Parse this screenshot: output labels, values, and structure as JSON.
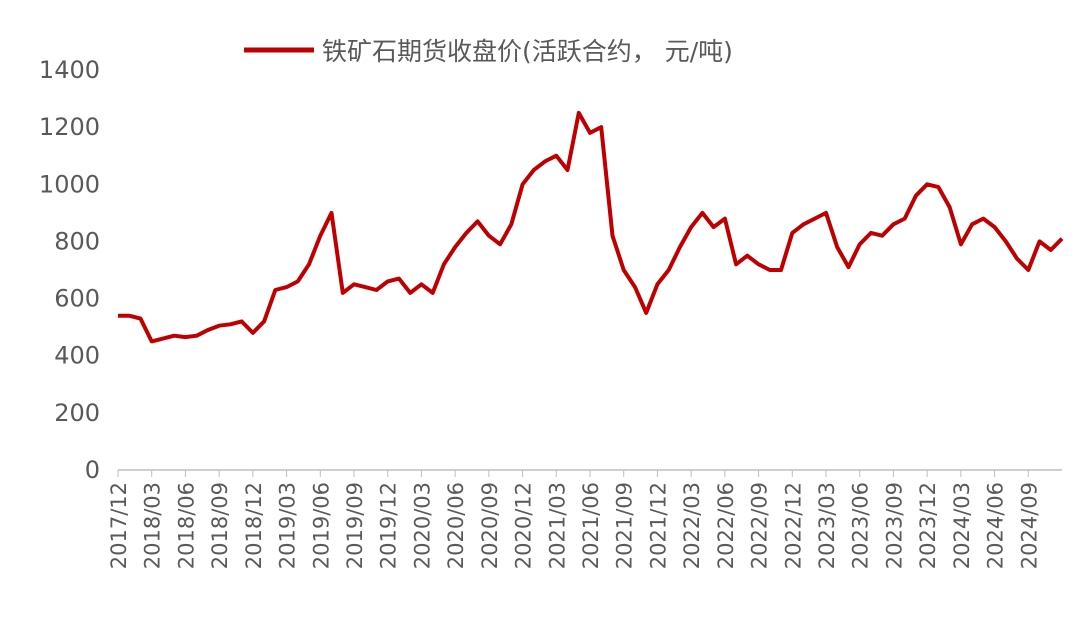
{
  "chart_data": {
    "type": "line",
    "x": [
      "2017/12",
      "2018/01",
      "2018/02",
      "2018/03",
      "2018/04",
      "2018/05",
      "2018/06",
      "2018/07",
      "2018/08",
      "2018/09",
      "2018/10",
      "2018/11",
      "2018/12",
      "2019/01",
      "2019/02",
      "2019/03",
      "2019/04",
      "2019/05",
      "2019/06",
      "2019/07",
      "2019/08",
      "2019/09",
      "2019/10",
      "2019/11",
      "2019/12",
      "2020/01",
      "2020/02",
      "2020/03",
      "2020/04",
      "2020/05",
      "2020/06",
      "2020/07",
      "2020/08",
      "2020/09",
      "2020/10",
      "2020/11",
      "2020/12",
      "2021/01",
      "2021/02",
      "2021/03",
      "2021/04",
      "2021/05",
      "2021/06",
      "2021/07",
      "2021/08",
      "2021/09",
      "2021/10",
      "2021/11",
      "2021/12",
      "2022/01",
      "2022/02",
      "2022/03",
      "2022/04",
      "2022/05",
      "2022/06",
      "2022/07",
      "2022/08",
      "2022/09",
      "2022/10",
      "2022/11",
      "2022/12",
      "2023/01",
      "2023/02",
      "2023/03",
      "2023/04",
      "2023/05",
      "2023/06",
      "2023/07",
      "2023/08",
      "2023/09",
      "2023/10",
      "2023/11",
      "2023/12",
      "2024/01",
      "2024/02",
      "2024/03",
      "2024/04",
      "2024/05",
      "2024/06",
      "2024/07",
      "2024/08",
      "2024/09",
      "2024/10",
      "2024/11",
      "2024/12"
    ],
    "series": [
      {
        "name": "铁矿石期货收盘价(活跃合约， 元/吨)",
        "color": "#c00000",
        "values": [
          540,
          540,
          530,
          450,
          460,
          470,
          465,
          470,
          490,
          505,
          510,
          520,
          480,
          520,
          630,
          640,
          660,
          720,
          820,
          900,
          620,
          650,
          640,
          630,
          660,
          670,
          620,
          650,
          620,
          720,
          780,
          830,
          870,
          820,
          790,
          860,
          1000,
          1050,
          1080,
          1100,
          1050,
          1250,
          1180,
          1200,
          820,
          700,
          640,
          550,
          650,
          700,
          780,
          850,
          900,
          850,
          880,
          720,
          750,
          720,
          700,
          700,
          830,
          860,
          880,
          900,
          780,
          710,
          790,
          830,
          820,
          860,
          880,
          960,
          1000,
          990,
          920,
          790,
          860,
          880,
          850,
          800,
          740,
          700,
          800,
          770,
          810
        ]
      }
    ],
    "ylim": [
      0,
      1400
    ],
    "yticks": [
      0,
      200,
      400,
      600,
      800,
      1000,
      1200,
      1400
    ],
    "xticks": [
      "2017/12",
      "2018/03",
      "2018/06",
      "2018/09",
      "2018/12",
      "2019/03",
      "2019/06",
      "2019/09",
      "2019/12",
      "2020/03",
      "2020/06",
      "2020/09",
      "2020/12",
      "2021/03",
      "2021/06",
      "2021/09",
      "2021/12",
      "2022/03",
      "2022/06",
      "2022/09",
      "2022/12",
      "2023/03",
      "2023/06",
      "2023/09",
      "2023/12",
      "2024/03",
      "2024/06",
      "2024/09"
    ],
    "grid": false
  }
}
